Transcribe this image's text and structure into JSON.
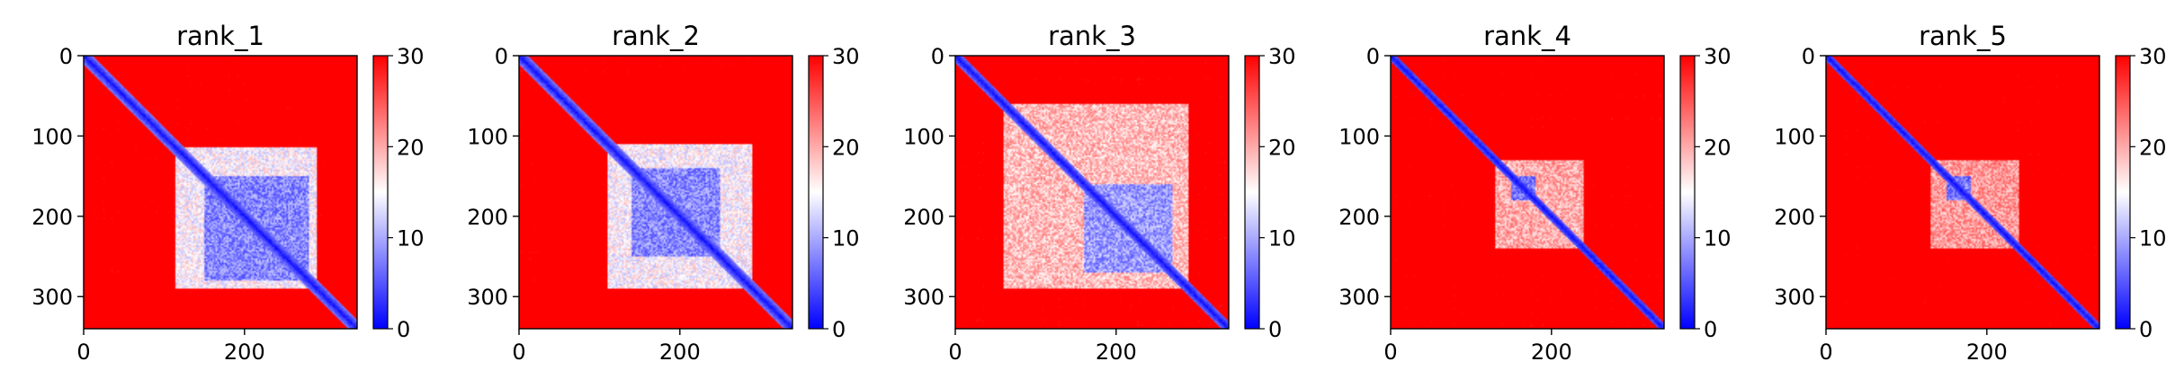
{
  "chart_data": [
    {
      "type": "heatmap",
      "title": "rank_1",
      "xlabel": "",
      "ylabel": "",
      "size": 340,
      "xlim": [
        0,
        340
      ],
      "ylim": [
        340,
        0
      ],
      "xticks": [
        0,
        200
      ],
      "yticks": [
        0,
        100,
        200,
        300
      ],
      "value_range": [
        0,
        30
      ],
      "colormap": [
        "#0000ff",
        "#ffffff",
        "#ff0000"
      ],
      "colorbar_ticks": [
        0,
        10,
        20,
        30
      ],
      "diagonal_width": 12,
      "blocks": [
        {
          "x0": 115,
          "x1": 290,
          "y0": 115,
          "y1": 290,
          "value": 15
        },
        {
          "x0": 150,
          "x1": 280,
          "y0": 150,
          "y1": 280,
          "value": 8
        }
      ]
    },
    {
      "type": "heatmap",
      "title": "rank_2",
      "xlabel": "",
      "ylabel": "",
      "size": 340,
      "xlim": [
        0,
        340
      ],
      "ylim": [
        340,
        0
      ],
      "xticks": [
        0,
        200
      ],
      "yticks": [
        0,
        100,
        200,
        300
      ],
      "value_range": [
        0,
        30
      ],
      "colormap": [
        "#0000ff",
        "#ffffff",
        "#ff0000"
      ],
      "colorbar_ticks": [
        0,
        10,
        20,
        30
      ],
      "diagonal_width": 12,
      "blocks": [
        {
          "x0": 110,
          "x1": 290,
          "y0": 110,
          "y1": 290,
          "value": 15
        },
        {
          "x0": 140,
          "x1": 250,
          "y0": 140,
          "y1": 250,
          "value": 8
        }
      ]
    },
    {
      "type": "heatmap",
      "title": "rank_3",
      "xlabel": "",
      "ylabel": "",
      "size": 340,
      "xlim": [
        0,
        340
      ],
      "ylim": [
        340,
        0
      ],
      "xticks": [
        0,
        200
      ],
      "yticks": [
        0,
        100,
        200,
        300
      ],
      "value_range": [
        0,
        30
      ],
      "colormap": [
        "#0000ff",
        "#ffffff",
        "#ff0000"
      ],
      "colorbar_ticks": [
        0,
        10,
        20,
        30
      ],
      "diagonal_width": 10,
      "blocks": [
        {
          "x0": 60,
          "x1": 290,
          "y0": 60,
          "y1": 290,
          "value": 19
        },
        {
          "x0": 160,
          "x1": 270,
          "y0": 160,
          "y1": 270,
          "value": 9
        }
      ]
    },
    {
      "type": "heatmap",
      "title": "rank_4",
      "xlabel": "",
      "ylabel": "",
      "size": 340,
      "xlim": [
        0,
        340
      ],
      "ylim": [
        340,
        0
      ],
      "xticks": [
        0,
        200
      ],
      "yticks": [
        0,
        100,
        200,
        300
      ],
      "value_range": [
        0,
        30
      ],
      "colormap": [
        "#0000ff",
        "#ffffff",
        "#ff0000"
      ],
      "colorbar_ticks": [
        0,
        10,
        20,
        30
      ],
      "diagonal_width": 8,
      "blocks": [
        {
          "x0": 130,
          "x1": 240,
          "y0": 130,
          "y1": 240,
          "value": 20
        },
        {
          "x0": 150,
          "x1": 180,
          "y0": 150,
          "y1": 180,
          "value": 7
        }
      ]
    },
    {
      "type": "heatmap",
      "title": "rank_5",
      "xlabel": "",
      "ylabel": "",
      "size": 340,
      "xlim": [
        0,
        340
      ],
      "ylim": [
        340,
        0
      ],
      "xticks": [
        0,
        200
      ],
      "yticks": [
        0,
        100,
        200,
        300
      ],
      "value_range": [
        0,
        30
      ],
      "colormap": [
        "#0000ff",
        "#ffffff",
        "#ff0000"
      ],
      "colorbar_ticks": [
        0,
        10,
        20,
        30
      ],
      "diagonal_width": 8,
      "blocks": [
        {
          "x0": 130,
          "x1": 240,
          "y0": 130,
          "y1": 240,
          "value": 21
        },
        {
          "x0": 150,
          "x1": 180,
          "y0": 150,
          "y1": 180,
          "value": 7
        }
      ]
    }
  ]
}
